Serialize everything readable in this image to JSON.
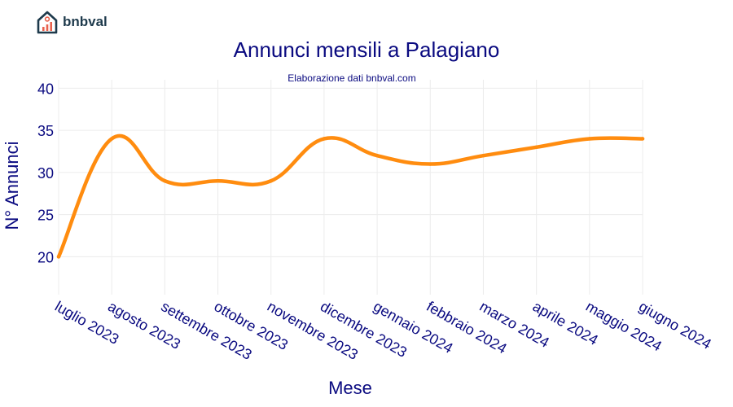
{
  "brand": {
    "name": "bnbval",
    "logo_icon": "house-chart-icon"
  },
  "colors": {
    "title": "#0a0a80",
    "line": "#ff8c0f",
    "grid": "#ececec",
    "brand": "#1e3a4c",
    "brand_accent": "#e8604c"
  },
  "chart_data": {
    "type": "line",
    "title": "Annunci mensili a Palagiano",
    "subtitle": "Elaborazione dati bnbval.com",
    "xlabel": "Mese",
    "ylabel": "N° Annunci",
    "categories": [
      "luglio 2023",
      "agosto 2023",
      "settembre 2023",
      "ottobre 2023",
      "novembre 2023",
      "dicembre 2023",
      "gennaio 2024",
      "febbraio 2024",
      "marzo 2024",
      "aprile 2024",
      "maggio 2024",
      "giugno 2024"
    ],
    "values": [
      20,
      34,
      29,
      29,
      29,
      34,
      32,
      31,
      32,
      33,
      34,
      34
    ],
    "yticks": [
      20,
      25,
      30,
      35,
      40
    ],
    "ylim": [
      15.5,
      41
    ],
    "grid": true,
    "smoothing": "spline"
  }
}
